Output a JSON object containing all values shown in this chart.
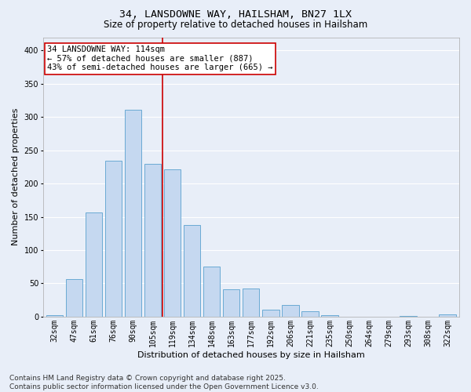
{
  "title_line1": "34, LANSDOWNE WAY, HAILSHAM, BN27 1LX",
  "title_line2": "Size of property relative to detached houses in Hailsham",
  "xlabel": "Distribution of detached houses by size in Hailsham",
  "ylabel": "Number of detached properties",
  "categories": [
    "32sqm",
    "47sqm",
    "61sqm",
    "76sqm",
    "90sqm",
    "105sqm",
    "119sqm",
    "134sqm",
    "148sqm",
    "163sqm",
    "177sqm",
    "192sqm",
    "206sqm",
    "221sqm",
    "235sqm",
    "250sqm",
    "264sqm",
    "279sqm",
    "293sqm",
    "308sqm",
    "322sqm"
  ],
  "values": [
    2,
    57,
    157,
    234,
    311,
    230,
    221,
    138,
    75,
    41,
    42,
    11,
    18,
    8,
    2,
    0,
    0,
    0,
    1,
    0,
    4
  ],
  "bar_color": "#c5d8f0",
  "bar_edge_color": "#6aaad4",
  "vline_x_index": 6,
  "vline_color": "#cc0000",
  "annotation_text": "34 LANSDOWNE WAY: 114sqm\n← 57% of detached houses are smaller (887)\n43% of semi-detached houses are larger (665) →",
  "annotation_box_color": "#cc0000",
  "annotation_fill": "white",
  "ylim": [
    0,
    420
  ],
  "yticks": [
    0,
    50,
    100,
    150,
    200,
    250,
    300,
    350,
    400
  ],
  "footer_text": "Contains HM Land Registry data © Crown copyright and database right 2025.\nContains public sector information licensed under the Open Government Licence v3.0.",
  "bg_color": "#e8eef8",
  "plot_bg_color": "#e8eef8",
  "grid_color": "white",
  "title_fontsize": 9.5,
  "subtitle_fontsize": 8.5,
  "axis_label_fontsize": 8,
  "tick_fontsize": 7,
  "footer_fontsize": 6.5,
  "annotation_fontsize": 7.5
}
